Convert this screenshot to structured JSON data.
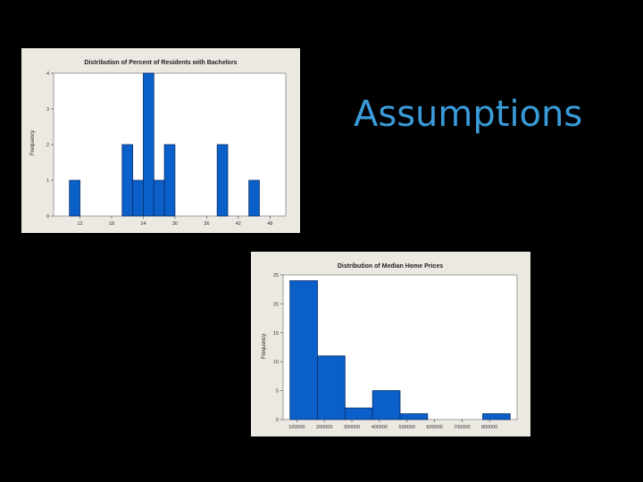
{
  "slide": {
    "title": "Assumptions",
    "background": "#000000",
    "title_color": "#3a9bd9"
  },
  "chart_data": [
    {
      "type": "bar",
      "title": "Distribution of Percent of Residents with Bachelors",
      "xlabel": "",
      "ylabel": "Frequency",
      "bar_color": "#0a5fc8",
      "bins": [
        {
          "x0": 10,
          "x1": 12,
          "count": 1
        },
        {
          "x0": 12,
          "x1": 14,
          "count": 0
        },
        {
          "x0": 14,
          "x1": 16,
          "count": 0
        },
        {
          "x0": 16,
          "x1": 18,
          "count": 0
        },
        {
          "x0": 18,
          "x1": 20,
          "count": 0
        },
        {
          "x0": 20,
          "x1": 22,
          "count": 2
        },
        {
          "x0": 22,
          "x1": 24,
          "count": 1
        },
        {
          "x0": 24,
          "x1": 26,
          "count": 4
        },
        {
          "x0": 26,
          "x1": 28,
          "count": 1
        },
        {
          "x0": 28,
          "x1": 30,
          "count": 2
        },
        {
          "x0": 30,
          "x1": 32,
          "count": 0
        },
        {
          "x0": 32,
          "x1": 34,
          "count": 0
        },
        {
          "x0": 34,
          "x1": 36,
          "count": 0
        },
        {
          "x0": 36,
          "x1": 38,
          "count": 0
        },
        {
          "x0": 38,
          "x1": 40,
          "count": 2
        },
        {
          "x0": 40,
          "x1": 42,
          "count": 0
        },
        {
          "x0": 42,
          "x1": 44,
          "count": 0
        },
        {
          "x0": 44,
          "x1": 46,
          "count": 1
        }
      ],
      "xlim": [
        7,
        51
      ],
      "ylim": [
        0,
        4
      ],
      "x_ticks": [
        12,
        18,
        24,
        30,
        36,
        42,
        48
      ],
      "y_ticks": [
        0,
        1,
        2,
        3,
        4
      ],
      "grid": false,
      "legend": "none"
    },
    {
      "type": "bar",
      "title": "Distribution of Median Home Prices",
      "xlabel": "",
      "ylabel": "Frequency",
      "bar_color": "#0a5fc8",
      "bins": [
        {
          "x0": 75000,
          "x1": 175000,
          "count": 24
        },
        {
          "x0": 175000,
          "x1": 275000,
          "count": 11
        },
        {
          "x0": 275000,
          "x1": 375000,
          "count": 2
        },
        {
          "x0": 375000,
          "x1": 475000,
          "count": 5
        },
        {
          "x0": 475000,
          "x1": 575000,
          "count": 1
        },
        {
          "x0": 575000,
          "x1": 675000,
          "count": 0
        },
        {
          "x0": 675000,
          "x1": 775000,
          "count": 0
        },
        {
          "x0": 775000,
          "x1": 875000,
          "count": 1
        }
      ],
      "xlim": [
        50000,
        900000
      ],
      "ylim": [
        0,
        25
      ],
      "x_ticks": [
        100000,
        200000,
        300000,
        400000,
        500000,
        600000,
        700000,
        800000
      ],
      "x_tick_labels": [
        "100000",
        "200000",
        "300000",
        "400000",
        "500000",
        "600000",
        "700000",
        "800000"
      ],
      "y_ticks": [
        0,
        5,
        10,
        15,
        20,
        25
      ],
      "grid": false,
      "legend": "none"
    }
  ]
}
